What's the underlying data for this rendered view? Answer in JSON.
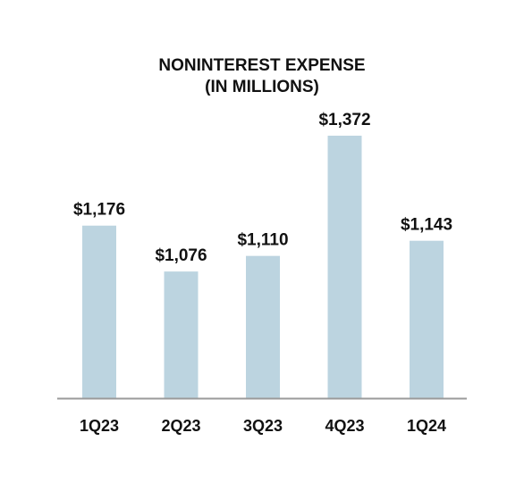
{
  "chart_data": {
    "type": "bar",
    "title_lines": [
      "NONINTEREST EXPENSE",
      "(IN MILLIONS)"
    ],
    "categories": [
      "1Q23",
      "2Q23",
      "3Q23",
      "4Q23",
      "1Q24"
    ],
    "values": [
      1176,
      1076,
      1110,
      1372,
      1143
    ],
    "value_labels": [
      "$1,176",
      "$1,076",
      "$1,110",
      "$1,372",
      "$1,143"
    ],
    "ylim": [
      800,
      1372
    ],
    "grid": false,
    "legend": "none",
    "colors": {
      "bar": "#bcd4e0",
      "axis": "#9a9a9a",
      "text": "#111111"
    }
  }
}
